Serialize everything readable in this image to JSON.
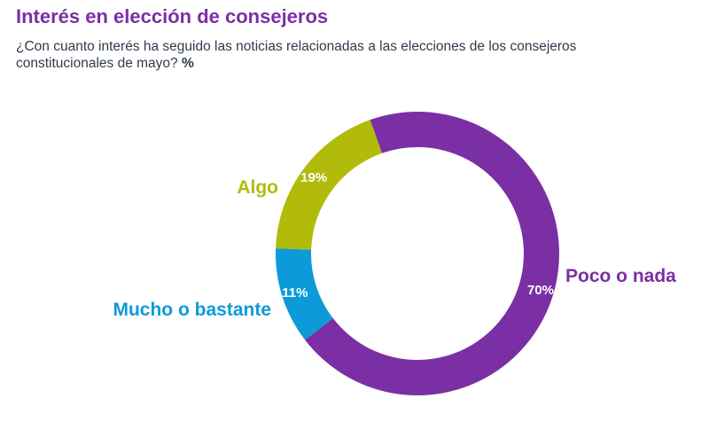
{
  "header": {
    "title": "Interés en elección de consejeros",
    "question": "¿Con cuanto interés ha seguido las noticias relacionadas a las elecciones de los consejeros constitucionales de mayo?",
    "unit": "%"
  },
  "chart_data": {
    "type": "pie",
    "donut": true,
    "unit": "%",
    "slices": [
      {
        "label": "Poco o nada",
        "value": 70,
        "value_label": "70%",
        "color": "#7b2fa5"
      },
      {
        "label": "Mucho o bastante",
        "value": 11,
        "value_label": "11%",
        "color": "#0c9bd8"
      },
      {
        "label": "Algo",
        "value": 19,
        "value_label": "19%",
        "color": "#b2bb0a"
      }
    ]
  }
}
